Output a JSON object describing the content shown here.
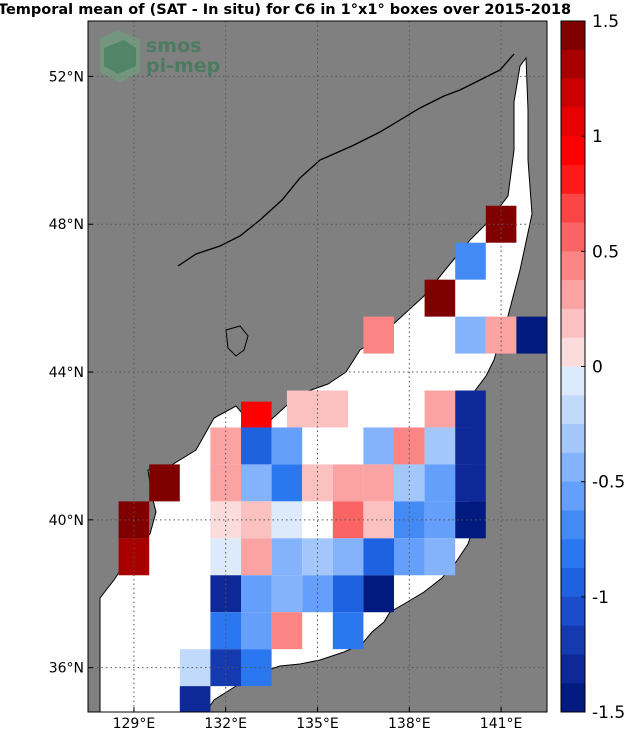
{
  "chart_data": {
    "type": "heatmap",
    "title": "Temporal mean of (SAT - In situ) for C6 in 1°x1° boxes over 2015-2018",
    "x_ticks": [
      129,
      132,
      135,
      138,
      141
    ],
    "x_tick_labels": [
      "129°E",
      "132°E",
      "135°E",
      "138°E",
      "141°E"
    ],
    "y_ticks": [
      36,
      40,
      44,
      48,
      52
    ],
    "y_tick_labels": [
      "36°N",
      "40°N",
      "44°N",
      "48°N",
      "52°N"
    ],
    "xlim": [
      127.5,
      142.5
    ],
    "ylim": [
      34.8,
      53.5
    ],
    "grid": true,
    "colorbar": {
      "range": [
        -1.5,
        1.5
      ],
      "levels": 24,
      "tick_values": [
        1.5,
        1,
        0.5,
        0,
        -0.5,
        -1,
        -1.5
      ],
      "tick_labels": [
        "1.5",
        "1",
        "0.5",
        "0",
        "-0.5",
        "-1",
        "-1.5"
      ]
    },
    "cells": [
      {
        "lon": 141,
        "lat": 48,
        "value": 1.45
      },
      {
        "lon": 140,
        "lat": 47,
        "value": -0.7
      },
      {
        "lon": 139,
        "lat": 46,
        "value": 1.45
      },
      {
        "lon": 137,
        "lat": 45,
        "value": 0.45
      },
      {
        "lon": 140,
        "lat": 45,
        "value": -0.45
      },
      {
        "lon": 141,
        "lat": 45,
        "value": 0.35
      },
      {
        "lon": 142,
        "lat": 45,
        "value": -1.45
      },
      {
        "lon": 134.5,
        "lat": 43,
        "value": 0.15
      },
      {
        "lon": 135.5,
        "lat": 43,
        "value": 0.15
      },
      {
        "lon": 139,
        "lat": 43,
        "value": 0.3
      },
      {
        "lon": 140,
        "lat": 43,
        "value": -1.35
      },
      {
        "lon": 133,
        "lat": 42.7,
        "value": 0.95
      },
      {
        "lon": 132,
        "lat": 42,
        "value": 0.3
      },
      {
        "lon": 133,
        "lat": 42,
        "value": -0.9
      },
      {
        "lon": 134,
        "lat": 42,
        "value": -0.55
      },
      {
        "lon": 137,
        "lat": 42,
        "value": -0.45
      },
      {
        "lon": 138,
        "lat": 42,
        "value": 0.4
      },
      {
        "lon": 139,
        "lat": 42,
        "value": -0.25
      },
      {
        "lon": 140,
        "lat": 42,
        "value": -1.3
      },
      {
        "lon": 130,
        "lat": 41,
        "value": 1.45
      },
      {
        "lon": 132,
        "lat": 41,
        "value": 0.3
      },
      {
        "lon": 133,
        "lat": 41,
        "value": -0.45
      },
      {
        "lon": 134,
        "lat": 41,
        "value": -0.85
      },
      {
        "lon": 135,
        "lat": 41,
        "value": 0.2
      },
      {
        "lon": 136,
        "lat": 41,
        "value": 0.25
      },
      {
        "lon": 137,
        "lat": 41,
        "value": 0.25
      },
      {
        "lon": 138,
        "lat": 41,
        "value": -0.3
      },
      {
        "lon": 139,
        "lat": 41,
        "value": -0.5
      },
      {
        "lon": 140,
        "lat": 41,
        "value": -1.3
      },
      {
        "lon": 129,
        "lat": 40,
        "value": 1.45
      },
      {
        "lon": 132,
        "lat": 40,
        "value": 0.1
      },
      {
        "lon": 133,
        "lat": 40,
        "value": 0.2
      },
      {
        "lon": 134,
        "lat": 40,
        "value": -0.1
      },
      {
        "lon": 135,
        "lat": 40,
        "value": 0.0
      },
      {
        "lon": 136,
        "lat": 40,
        "value": 0.5
      },
      {
        "lon": 137,
        "lat": 40,
        "value": 0.15
      },
      {
        "lon": 138,
        "lat": 40,
        "value": -0.7
      },
      {
        "lon": 139,
        "lat": 40,
        "value": -0.6
      },
      {
        "lon": 140,
        "lat": 40,
        "value": -1.45
      },
      {
        "lon": 129,
        "lat": 39,
        "value": 1.3
      },
      {
        "lon": 132,
        "lat": 39,
        "value": -0.1
      },
      {
        "lon": 133,
        "lat": 39,
        "value": 0.25
      },
      {
        "lon": 134,
        "lat": 39,
        "value": -0.45
      },
      {
        "lon": 135,
        "lat": 39,
        "value": -0.3
      },
      {
        "lon": 136,
        "lat": 39,
        "value": -0.45
      },
      {
        "lon": 137,
        "lat": 39,
        "value": -0.95
      },
      {
        "lon": 138,
        "lat": 39,
        "value": -0.55
      },
      {
        "lon": 139,
        "lat": 39,
        "value": -0.45
      },
      {
        "lon": 132,
        "lat": 38,
        "value": -1.25
      },
      {
        "lon": 133,
        "lat": 38,
        "value": -0.6
      },
      {
        "lon": 134,
        "lat": 38,
        "value": -0.45
      },
      {
        "lon": 135,
        "lat": 38,
        "value": -0.6
      },
      {
        "lon": 136,
        "lat": 38,
        "value": -0.95
      },
      {
        "lon": 137,
        "lat": 38,
        "value": -1.45
      },
      {
        "lon": 132,
        "lat": 37,
        "value": -0.75
      },
      {
        "lon": 133,
        "lat": 37,
        "value": -0.6
      },
      {
        "lon": 134,
        "lat": 37,
        "value": 0.45
      },
      {
        "lon": 136,
        "lat": 37,
        "value": -0.85
      },
      {
        "lon": 131,
        "lat": 36,
        "value": -0.15
      },
      {
        "lon": 132,
        "lat": 36,
        "value": -1.2
      },
      {
        "lon": 133,
        "lat": 36,
        "value": -0.8
      },
      {
        "lon": 131,
        "lat": 35,
        "value": -1.35
      }
    ]
  },
  "logo": {
    "line1": "smos",
    "line2": "pi-mep"
  },
  "colors": {
    "land": "#808080",
    "sea": "#ffffff",
    "grid": "#555555"
  }
}
